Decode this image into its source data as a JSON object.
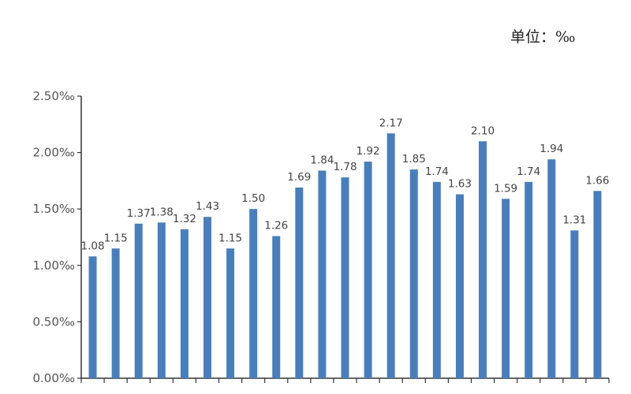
{
  "chart_data": {
    "type": "bar",
    "title": "",
    "unit_label": "单位：‰",
    "xlabel": "",
    "ylabel": "",
    "ylim": [
      0,
      2.5
    ],
    "yticks": [
      "0.00‰",
      "0.50‰",
      "1.00‰",
      "1.50‰",
      "2.00‰",
      "2.50‰"
    ],
    "ytick_values": [
      0,
      0.5,
      1.0,
      1.5,
      2.0,
      2.5
    ],
    "values": [
      1.08,
      1.15,
      1.37,
      1.38,
      1.32,
      1.43,
      1.15,
      1.5,
      1.26,
      1.69,
      1.84,
      1.78,
      1.92,
      2.17,
      1.85,
      1.74,
      1.63,
      2.1,
      1.59,
      1.74,
      1.94,
      1.31,
      1.66
    ],
    "data_labels": [
      "1.08",
      "1.15",
      "1.37",
      "1.38",
      "1.32",
      "1.43",
      "1.15",
      "1.50",
      "1.26",
      "1.69",
      "1.84",
      "1.78",
      "1.92",
      "2.17",
      "1.85",
      "1.74",
      "1.63",
      "2.10",
      "1.59",
      "1.74",
      "1.94",
      "1.31",
      "1.66"
    ],
    "grid": false,
    "legend": "none",
    "bar_color": "#4a7ebb"
  }
}
